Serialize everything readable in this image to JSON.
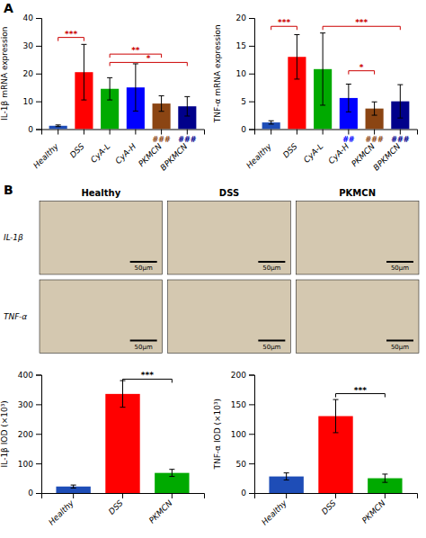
{
  "chart_data": [
    {
      "type": "bar",
      "categories": [
        "Healthy",
        "DSS",
        "CyA-L",
        "CyA-H",
        "PKMCN",
        "BPKMCN"
      ],
      "values": [
        1.2,
        20.5,
        14.5,
        15.0,
        9.2,
        8.2
      ],
      "errors": [
        0.3,
        10.0,
        4.0,
        8.5,
        2.8,
        3.5
      ],
      "colors": [
        "#1e4db7",
        "#ff0000",
        "#00aa00",
        "#0000ff",
        "#8b4513",
        "#00008b"
      ],
      "ylim": [
        0,
        40
      ],
      "yticks": [
        0,
        10,
        20,
        30,
        40
      ],
      "y_label": "IL-1β mRNA expression",
      "annotations": [
        {
          "type": "panel_label",
          "text": "A"
        },
        {
          "type": "bracket",
          "from": "Healthy",
          "to": "DSS",
          "y": 33,
          "text": "***",
          "color": "#cc0000"
        },
        {
          "type": "bracket",
          "from": "CyA-L",
          "to": "PKMCN",
          "y": 27,
          "text": "**",
          "color": "#cc0000"
        },
        {
          "type": "bracket",
          "from": "CyA-L",
          "to": "BPKMCN",
          "y": 24,
          "text": "*",
          "color": "#cc0000"
        },
        {
          "type": "mark",
          "at": "PKMCN",
          "text": "###",
          "color": "#8b4513"
        },
        {
          "type": "mark",
          "at": "BPKMCN",
          "text": "###",
          "color": "#00008b"
        }
      ]
    },
    {
      "type": "bar",
      "categories": [
        "Healthy",
        "DSS",
        "CyA-L",
        "CyA-H",
        "PKMCN",
        "BPKMCN"
      ],
      "values": [
        1.2,
        13.0,
        10.8,
        5.6,
        3.7,
        5.0
      ],
      "errors": [
        0.3,
        4.0,
        6.5,
        2.5,
        1.2,
        3.0
      ],
      "colors": [
        "#1e4db7",
        "#ff0000",
        "#00aa00",
        "#0000ff",
        "#8b4513",
        "#00008b"
      ],
      "ylim": [
        0,
        20
      ],
      "yticks": [
        0,
        5,
        10,
        15,
        20
      ],
      "y_label": "TNF-α mRNA expression",
      "annotations": [
        {
          "type": "bracket",
          "from": "Healthy",
          "to": "DSS",
          "y": 18.5,
          "text": "***",
          "color": "#cc0000"
        },
        {
          "type": "bracket",
          "from": "CyA-L",
          "to": "BPKMCN",
          "y": 18.5,
          "text": "***",
          "color": "#cc0000"
        },
        {
          "type": "bracket",
          "from": "CyA-H",
          "to": "PKMCN",
          "y": 10.5,
          "text": "*",
          "color": "#cc0000"
        },
        {
          "type": "mark",
          "at": "CyA-H",
          "text": "##",
          "color": "#0000ff"
        },
        {
          "type": "mark",
          "at": "PKMCN",
          "text": "###",
          "color": "#8b4513"
        },
        {
          "type": "mark",
          "at": "BPKMCN",
          "text": "###",
          "color": "#00008b"
        }
      ]
    },
    {
      "type": "image_grid",
      "categories": [
        "Healthy",
        "DSS",
        "PKMCN"
      ],
      "annotations": [
        {
          "type": "panel_label",
          "text": "B"
        },
        {
          "type": "row_label",
          "text": "IL-1β"
        },
        {
          "type": "row_label",
          "text": "TNF-α"
        },
        {
          "type": "scale_bar",
          "text": "50μm"
        }
      ]
    },
    {
      "type": "bar",
      "categories": [
        "Healthy",
        "DSS",
        "PKMCN"
      ],
      "values": [
        22,
        335,
        68
      ],
      "errors": [
        5,
        45,
        12
      ],
      "colors": [
        "#1e4db7",
        "#ff0000",
        "#00aa00"
      ],
      "ylim": [
        0,
        400
      ],
      "yticks": [
        0,
        100,
        200,
        300,
        400
      ],
      "y_label": "IL-1β IOD (×10³)",
      "annotations": [
        {
          "type": "bracket",
          "from": "DSS",
          "to": "PKMCN",
          "y": 385,
          "text": "***",
          "color": "#000000"
        }
      ]
    },
    {
      "type": "bar",
      "categories": [
        "Healthy",
        "DSS",
        "PKMCN"
      ],
      "values": [
        28,
        130,
        25
      ],
      "errors": [
        6,
        28,
        7
      ],
      "colors": [
        "#1e4db7",
        "#ff0000",
        "#00aa00"
      ],
      "ylim": [
        0,
        200
      ],
      "yticks": [
        0,
        50,
        100,
        150,
        200
      ],
      "y_label": "TNF-α IOD (×10³)",
      "annotations": [
        {
          "type": "bracket",
          "from": "DSS",
          "to": "PKMCN",
          "y": 168,
          "text": "***",
          "color": "#000000"
        }
      ]
    }
  ]
}
